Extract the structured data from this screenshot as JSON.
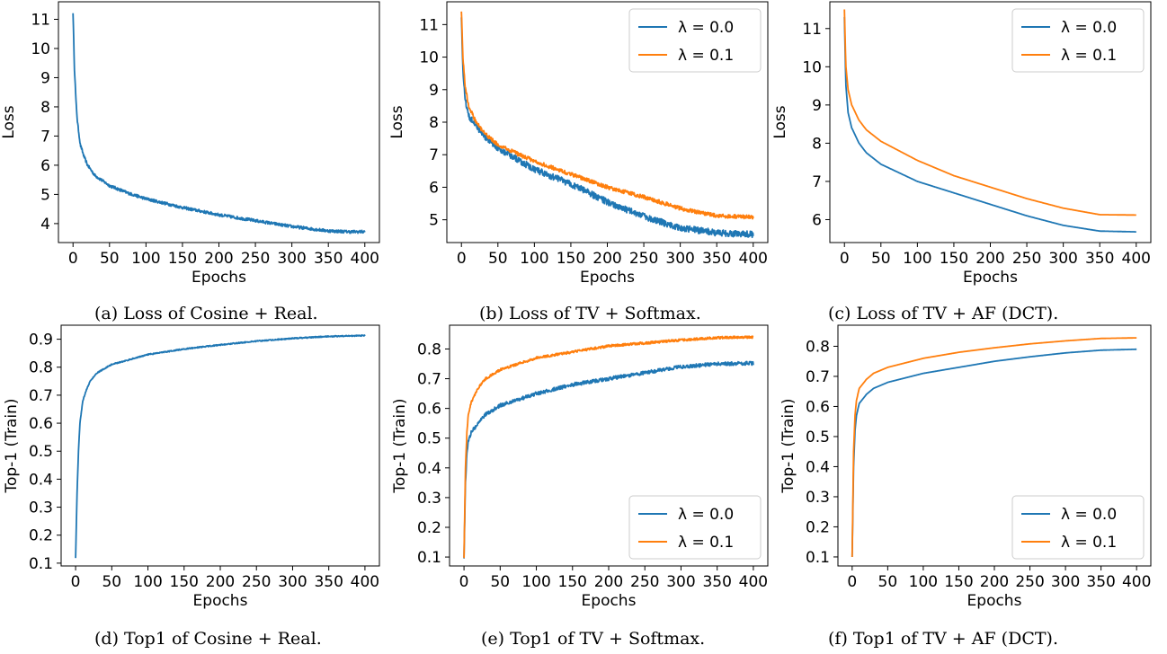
{
  "colors": {
    "lambda_0": "#1f77b4",
    "lambda_01": "#ff7f0e",
    "axis": "#000000"
  },
  "captions": [
    "(a) Loss of Cosine + Real.",
    "(b) Loss of TV + Softmax.",
    "(c) Loss of TV + AF (DCT).",
    "(d) Top1 of Cosine + Real.",
    "(e) Top1 of TV + Softmax.",
    "(f) Top1 of TV + AF (DCT)."
  ],
  "chart_data": [
    {
      "type": "line",
      "caption": "(a) Loss of Cosine + Real.",
      "xlabel": "Epochs",
      "ylabel": "Loss",
      "xlim": [
        -20,
        420
      ],
      "ylim": [
        3.35,
        11.6
      ],
      "xticks": [
        0,
        50,
        100,
        150,
        200,
        250,
        300,
        350,
        400
      ],
      "yticks": [
        4,
        5,
        6,
        7,
        8,
        9,
        10,
        11
      ],
      "legend": null,
      "series": [
        {
          "color": "lambda_0",
          "noise": 0.05,
          "points": [
            [
              0,
              11.25
            ],
            [
              2,
              9.3
            ],
            [
              4,
              8.2
            ],
            [
              6,
              7.5
            ],
            [
              10,
              6.7
            ],
            [
              15,
              6.3
            ],
            [
              20,
              6.0
            ],
            [
              30,
              5.65
            ],
            [
              50,
              5.3
            ],
            [
              75,
              5.05
            ],
            [
              100,
              4.85
            ],
            [
              150,
              4.55
            ],
            [
              200,
              4.3
            ],
            [
              250,
              4.1
            ],
            [
              300,
              3.9
            ],
            [
              350,
              3.75
            ],
            [
              380,
              3.72
            ],
            [
              400,
              3.72
            ]
          ]
        }
      ]
    },
    {
      "type": "line",
      "caption": "(b) Loss of TV + Softmax.",
      "xlabel": "Epochs",
      "ylabel": "Loss",
      "xlim": [
        -20,
        420
      ],
      "ylim": [
        4.3,
        11.7
      ],
      "xticks": [
        0,
        50,
        100,
        150,
        200,
        250,
        300,
        350,
        400
      ],
      "yticks": [
        5,
        6,
        7,
        8,
        9,
        10,
        11
      ],
      "legend": "top-right",
      "series": [
        {
          "name": "λ = 0.0",
          "color": "lambda_0",
          "noise": 0.1,
          "points": [
            [
              0,
              11.3
            ],
            [
              2,
              9.6
            ],
            [
              5,
              8.7
            ],
            [
              10,
              8.2
            ],
            [
              20,
              7.9
            ],
            [
              30,
              7.6
            ],
            [
              50,
              7.2
            ],
            [
              100,
              6.55
            ],
            [
              150,
              6.1
            ],
            [
              200,
              5.55
            ],
            [
              250,
              5.1
            ],
            [
              300,
              4.75
            ],
            [
              350,
              4.6
            ],
            [
              400,
              4.55
            ]
          ]
        },
        {
          "name": "λ = 0.1",
          "color": "lambda_01",
          "noise": 0.06,
          "points": [
            [
              0,
              11.45
            ],
            [
              2,
              10.0
            ],
            [
              5,
              9.1
            ],
            [
              10,
              8.5
            ],
            [
              20,
              8.0
            ],
            [
              30,
              7.7
            ],
            [
              50,
              7.3
            ],
            [
              100,
              6.8
            ],
            [
              150,
              6.4
            ],
            [
              200,
              6.0
            ],
            [
              250,
              5.7
            ],
            [
              300,
              5.35
            ],
            [
              350,
              5.12
            ],
            [
              400,
              5.08
            ]
          ]
        }
      ]
    },
    {
      "type": "line",
      "caption": "(c) Loss of TV + AF (DCT).",
      "xlabel": "Epochs",
      "ylabel": "Loss",
      "xlim": [
        -20,
        420
      ],
      "ylim": [
        5.4,
        11.7
      ],
      "xticks": [
        0,
        50,
        100,
        150,
        200,
        250,
        300,
        350,
        400
      ],
      "yticks": [
        6,
        7,
        8,
        9,
        10,
        11
      ],
      "legend": "top-right",
      "series": [
        {
          "name": "λ = 0.0",
          "color": "lambda_0",
          "noise": 0,
          "points": [
            [
              0,
              11.3
            ],
            [
              2,
              9.5
            ],
            [
              5,
              8.8
            ],
            [
              10,
              8.4
            ],
            [
              20,
              8.0
            ],
            [
              30,
              7.75
            ],
            [
              50,
              7.45
            ],
            [
              100,
              7.0
            ],
            [
              150,
              6.7
            ],
            [
              200,
              6.4
            ],
            [
              250,
              6.1
            ],
            [
              300,
              5.85
            ],
            [
              350,
              5.7
            ],
            [
              400,
              5.68
            ]
          ]
        },
        {
          "name": "λ = 0.1",
          "color": "lambda_01",
          "noise": 0,
          "points": [
            [
              0,
              11.5
            ],
            [
              2,
              10.0
            ],
            [
              5,
              9.4
            ],
            [
              10,
              9.0
            ],
            [
              20,
              8.6
            ],
            [
              30,
              8.35
            ],
            [
              50,
              8.05
            ],
            [
              100,
              7.55
            ],
            [
              150,
              7.15
            ],
            [
              200,
              6.85
            ],
            [
              250,
              6.55
            ],
            [
              300,
              6.3
            ],
            [
              350,
              6.13
            ],
            [
              400,
              6.12
            ]
          ]
        }
      ]
    },
    {
      "type": "line",
      "caption": "(d) Top1 of Cosine + Real.",
      "xlabel": "Epochs",
      "ylabel": "Top-1 (Train)",
      "xlim": [
        -20,
        420
      ],
      "ylim": [
        0.09,
        0.95
      ],
      "xticks": [
        0,
        50,
        100,
        150,
        200,
        250,
        300,
        350,
        400
      ],
      "yticks": [
        0.1,
        0.2,
        0.3,
        0.4,
        0.5,
        0.6,
        0.7,
        0.8,
        0.9
      ],
      "legend": null,
      "series": [
        {
          "color": "lambda_0",
          "noise": 0.002,
          "points": [
            [
              0,
              0.12
            ],
            [
              2,
              0.35
            ],
            [
              4,
              0.5
            ],
            [
              6,
              0.6
            ],
            [
              10,
              0.68
            ],
            [
              15,
              0.72
            ],
            [
              20,
              0.75
            ],
            [
              30,
              0.78
            ],
            [
              50,
              0.81
            ],
            [
              100,
              0.845
            ],
            [
              150,
              0.865
            ],
            [
              200,
              0.88
            ],
            [
              250,
              0.893
            ],
            [
              300,
              0.903
            ],
            [
              350,
              0.91
            ],
            [
              400,
              0.913
            ]
          ]
        }
      ]
    },
    {
      "type": "line",
      "caption": "(e) Top1 of TV + Softmax.",
      "xlabel": "Epochs",
      "ylabel": "Top-1 (Train)",
      "xlim": [
        -20,
        420
      ],
      "ylim": [
        0.07,
        0.88
      ],
      "xticks": [
        0,
        50,
        100,
        150,
        200,
        250,
        300,
        350,
        400
      ],
      "yticks": [
        0.1,
        0.2,
        0.3,
        0.4,
        0.5,
        0.6,
        0.7,
        0.8
      ],
      "legend": "bottom-right",
      "series": [
        {
          "name": "λ = 0.0",
          "color": "lambda_0",
          "noise": 0.006,
          "points": [
            [
              0,
              0.1
            ],
            [
              2,
              0.35
            ],
            [
              4,
              0.45
            ],
            [
              6,
              0.49
            ],
            [
              10,
              0.52
            ],
            [
              20,
              0.55
            ],
            [
              30,
              0.58
            ],
            [
              50,
              0.61
            ],
            [
              100,
              0.65
            ],
            [
              150,
              0.68
            ],
            [
              200,
              0.7
            ],
            [
              250,
              0.72
            ],
            [
              300,
              0.74
            ],
            [
              350,
              0.75
            ],
            [
              400,
              0.752
            ]
          ]
        },
        {
          "name": "λ = 0.1",
          "color": "lambda_01",
          "noise": 0.004,
          "points": [
            [
              0,
              0.1
            ],
            [
              2,
              0.4
            ],
            [
              4,
              0.52
            ],
            [
              6,
              0.58
            ],
            [
              10,
              0.62
            ],
            [
              20,
              0.67
            ],
            [
              30,
              0.7
            ],
            [
              50,
              0.73
            ],
            [
              100,
              0.77
            ],
            [
              150,
              0.79
            ],
            [
              200,
              0.81
            ],
            [
              250,
              0.82
            ],
            [
              300,
              0.83
            ],
            [
              350,
              0.838
            ],
            [
              400,
              0.84
            ]
          ]
        }
      ]
    },
    {
      "type": "line",
      "caption": "(f) Top1 of TV + AF (DCT).",
      "xlabel": "Epochs",
      "ylabel": "Top-1 (Train)",
      "xlim": [
        -20,
        420
      ],
      "ylim": [
        0.07,
        0.87
      ],
      "xticks": [
        0,
        50,
        100,
        150,
        200,
        250,
        300,
        350,
        400
      ],
      "yticks": [
        0.1,
        0.2,
        0.3,
        0.4,
        0.5,
        0.6,
        0.7,
        0.8
      ],
      "legend": "bottom-right",
      "series": [
        {
          "name": "λ = 0.0",
          "color": "lambda_0",
          "noise": 0,
          "points": [
            [
              0,
              0.1
            ],
            [
              2,
              0.4
            ],
            [
              4,
              0.52
            ],
            [
              6,
              0.57
            ],
            [
              10,
              0.61
            ],
            [
              20,
              0.64
            ],
            [
              30,
              0.66
            ],
            [
              50,
              0.68
            ],
            [
              100,
              0.71
            ],
            [
              150,
              0.73
            ],
            [
              200,
              0.75
            ],
            [
              250,
              0.765
            ],
            [
              300,
              0.778
            ],
            [
              350,
              0.787
            ],
            [
              400,
              0.79
            ]
          ]
        },
        {
          "name": "λ = 0.1",
          "color": "lambda_01",
          "noise": 0,
          "points": [
            [
              0,
              0.1
            ],
            [
              2,
              0.45
            ],
            [
              4,
              0.57
            ],
            [
              6,
              0.62
            ],
            [
              10,
              0.66
            ],
            [
              20,
              0.69
            ],
            [
              30,
              0.71
            ],
            [
              50,
              0.73
            ],
            [
              100,
              0.76
            ],
            [
              150,
              0.78
            ],
            [
              200,
              0.795
            ],
            [
              250,
              0.808
            ],
            [
              300,
              0.818
            ],
            [
              350,
              0.826
            ],
            [
              400,
              0.828
            ]
          ]
        }
      ]
    }
  ]
}
